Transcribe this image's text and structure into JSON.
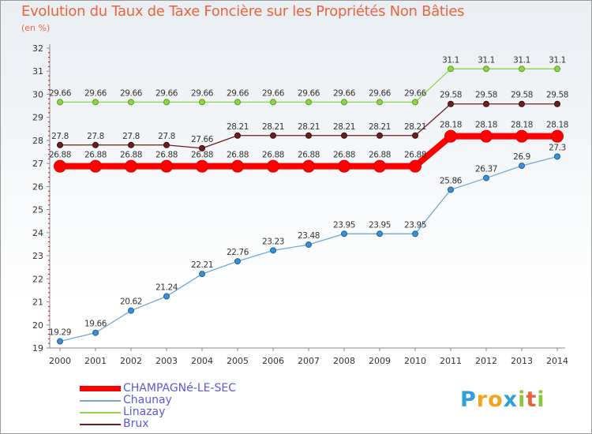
{
  "chart_data": {
    "type": "line",
    "title": "Evolution du Taux de Taxe Foncière sur les Propriétés Non Bâties",
    "ylabel": "(en %)",
    "xlabel": "",
    "ylim": [
      19,
      32
    ],
    "yticks": [
      "19",
      "20",
      "21",
      "22",
      "23",
      "24",
      "25",
      "26",
      "27",
      "28",
      "29",
      "30",
      "31",
      "32"
    ],
    "categories": [
      "2000",
      "2001",
      "2002",
      "2003",
      "2004",
      "2005",
      "2006",
      "2007",
      "2008",
      "2009",
      "2010",
      "2011",
      "2012",
      "2013",
      "2014"
    ],
    "series": [
      {
        "name": "CHAMPAGNé-LE-SEC",
        "color": "#ff0000",
        "values": [
          26.88,
          26.88,
          26.88,
          26.88,
          26.88,
          26.88,
          26.88,
          26.88,
          26.88,
          26.88,
          26.88,
          28.18,
          28.18,
          28.18,
          28.18
        ],
        "labels": [
          "26.88",
          "26.88",
          "26.88",
          "26.88",
          "26.88",
          "26.88",
          "26.88",
          "26.88",
          "26.88",
          "26.88",
          "26.88",
          "28.18",
          "28.18",
          "28.18",
          "28.18"
        ]
      },
      {
        "name": "Chaunay",
        "color": "#6fa8dc",
        "values": [
          19.29,
          19.66,
          20.62,
          21.24,
          22.21,
          22.76,
          23.23,
          23.48,
          23.95,
          23.95,
          23.95,
          25.86,
          26.37,
          26.9,
          27.3
        ],
        "labels": [
          "19.29",
          "19.66",
          "20.62",
          "21.24",
          "22.21",
          "22.76",
          "23.23",
          "23.48",
          "23.95",
          "23.95",
          "23.95",
          "25.86",
          "26.37",
          "26.9",
          "27.3"
        ]
      },
      {
        "name": "Linazay",
        "color": "#8fd448",
        "values": [
          29.66,
          29.66,
          29.66,
          29.66,
          29.66,
          29.66,
          29.66,
          29.66,
          29.66,
          29.66,
          29.66,
          31.1,
          31.1,
          31.1,
          31.1
        ],
        "labels": [
          "29.66",
          "29.66",
          "29.66",
          "29.66",
          "29.66",
          "29.66",
          "29.66",
          "29.66",
          "29.66",
          "29.66",
          "29.66",
          "31.1",
          "31.1",
          "31.1",
          "31.1"
        ]
      },
      {
        "name": "Brux",
        "color": "#6b1f1f",
        "values": [
          27.8,
          27.8,
          27.8,
          27.8,
          27.66,
          28.21,
          28.21,
          28.21,
          28.21,
          28.21,
          28.21,
          29.58,
          29.58,
          29.58,
          29.58
        ],
        "labels": [
          "27.8",
          "27.8",
          "27.8",
          "27.8",
          "27.66",
          "28.21",
          "28.21",
          "28.21",
          "28.21",
          "28.21",
          "28.21",
          "29.58",
          "29.58",
          "29.58",
          "29.58"
        ]
      }
    ],
    "legend_position": "bottom-left",
    "grid": false
  },
  "logo": {
    "p": "P",
    "ro": "ro",
    "x": "x",
    "i1": "i",
    "t": "t",
    "i2": "i"
  }
}
